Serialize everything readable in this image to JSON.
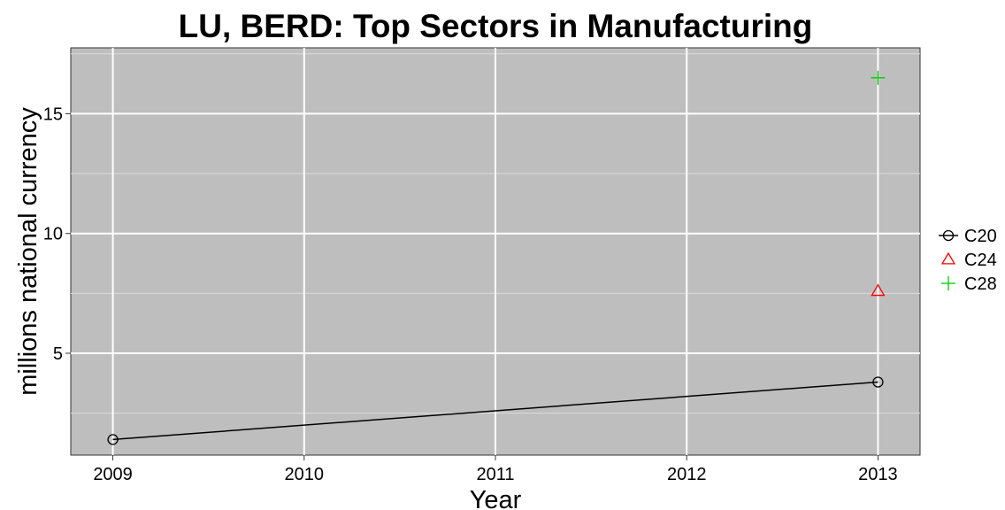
{
  "chart_data": {
    "type": "line",
    "title": "LU, BERD: Top Sectors in Manufacturing",
    "xlabel": "Year",
    "ylabel": "millions national currency",
    "xlim": [
      2008.78,
      2013.22
    ],
    "ylim": [
      0.75,
      17.75
    ],
    "x_ticks": [
      2009,
      2010,
      2011,
      2012,
      2013
    ],
    "x_tick_labels": [
      "2009",
      "2010",
      "2011",
      "2012",
      "2013"
    ],
    "y_ticks": [
      5,
      10,
      15
    ],
    "y_tick_labels": [
      "5",
      "10",
      "15"
    ],
    "grid": true,
    "legend_position": "right",
    "series": [
      {
        "name": "C20",
        "color": "#000000",
        "marker": "circle",
        "x": [
          2009,
          2013
        ],
        "values": [
          1.4,
          3.8
        ]
      },
      {
        "name": "C24",
        "color": "#ff0000",
        "marker": "triangle",
        "x": [
          2013
        ],
        "values": [
          7.6
        ]
      },
      {
        "name": "C28",
        "color": "#00cc00",
        "marker": "plus",
        "x": [
          2013
        ],
        "values": [
          16.5
        ]
      }
    ]
  }
}
